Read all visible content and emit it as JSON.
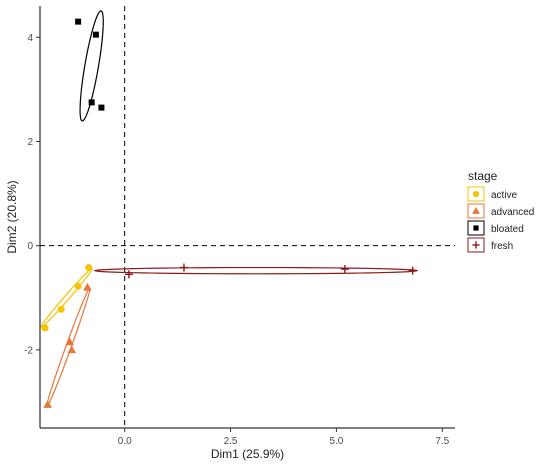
{
  "chart_data": {
    "type": "scatter",
    "title": "",
    "xlabel": "Dim1 (25.9%)",
    "ylabel": "Dim2 (20.8%)",
    "xlim": [
      -2.0,
      7.8
    ],
    "ylim": [
      -3.5,
      4.6
    ],
    "x_ticks": [
      0.0,
      2.5,
      5.0,
      7.5
    ],
    "x_tick_labels": [
      "0.0",
      "2.5",
      "5.0",
      "7.5"
    ],
    "y_ticks": [
      -2,
      0,
      2,
      4
    ],
    "y_tick_labels": [
      "-2",
      "0",
      "2",
      "4"
    ],
    "grid": false,
    "reference_lines": {
      "x": 0,
      "y": 0,
      "style": "dashed"
    },
    "legend": {
      "title": "stage",
      "position": "right"
    },
    "series": [
      {
        "name": "active",
        "marker": "circle",
        "color": "#F5C400",
        "points": [
          {
            "x": -0.85,
            "y": -0.42
          },
          {
            "x": -1.1,
            "y": -0.78
          },
          {
            "x": -1.5,
            "y": -1.22
          },
          {
            "x": -1.88,
            "y": -1.58
          }
        ],
        "ellipse": {
          "cx": -1.37,
          "cy": -1.0,
          "rx": 0.82,
          "ry": 0.05,
          "angle_deg": 43
        }
      },
      {
        "name": "advanced",
        "marker": "triangle",
        "color": "#E8753A",
        "points": [
          {
            "x": -0.88,
            "y": -0.8
          },
          {
            "x": -1.3,
            "y": -1.85
          },
          {
            "x": -1.25,
            "y": -2.0
          },
          {
            "x": -1.82,
            "y": -3.05
          }
        ],
        "ellipse": {
          "cx": -1.33,
          "cy": -1.95,
          "rx": 1.25,
          "ry": 0.06,
          "angle_deg": 66
        }
      },
      {
        "name": "bloated",
        "marker": "square",
        "color": "#000000",
        "points": [
          {
            "x": -1.1,
            "y": 4.3
          },
          {
            "x": -0.68,
            "y": 4.05
          },
          {
            "x": -0.78,
            "y": 2.75
          },
          {
            "x": -0.55,
            "y": 2.65
          }
        ],
        "ellipse": {
          "cx": -0.78,
          "cy": 3.45,
          "rx": 1.08,
          "ry": 0.16,
          "angle_deg": 78
        }
      },
      {
        "name": "fresh",
        "marker": "cross",
        "color": "#8B1A1A",
        "points": [
          {
            "x": 0.1,
            "y": -0.55
          },
          {
            "x": 1.4,
            "y": -0.42
          },
          {
            "x": 5.2,
            "y": -0.45
          },
          {
            "x": 6.8,
            "y": -0.48
          }
        ],
        "ellipse": {
          "cx": 3.1,
          "cy": -0.48,
          "rx": 3.8,
          "ry": 0.06,
          "angle_deg": 0
        }
      }
    ]
  }
}
